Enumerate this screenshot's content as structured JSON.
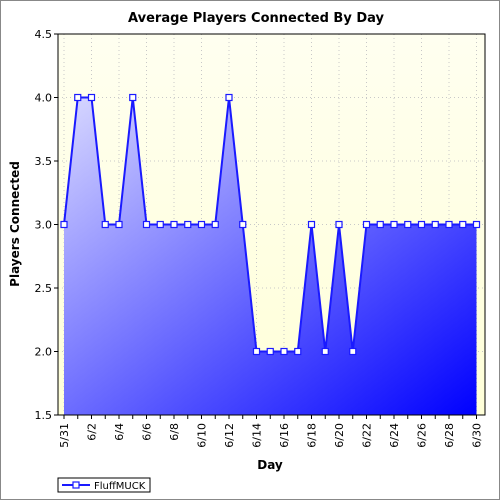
{
  "chart_data": {
    "type": "area",
    "title": "Average Players Connected By Day",
    "xlabel": "Day",
    "ylabel": "Players Connected",
    "ylim": [
      1.5,
      4.5
    ],
    "y_ticks": [
      "1.5",
      "2.0",
      "2.5",
      "3.0",
      "3.5",
      "4.0",
      "4.5"
    ],
    "x_tick_labels": [
      "5/31",
      "6/2",
      "6/4",
      "6/6",
      "6/8",
      "6/10",
      "6/12",
      "6/14",
      "6/16",
      "6/18",
      "6/20",
      "6/22",
      "6/24",
      "6/26",
      "6/28",
      "6/30"
    ],
    "x": [
      "5/31",
      "6/1",
      "6/2",
      "6/3",
      "6/4",
      "6/5",
      "6/6",
      "6/7",
      "6/8",
      "6/9",
      "6/10",
      "6/11",
      "6/12",
      "6/13",
      "6/14",
      "6/15",
      "6/16",
      "6/17",
      "6/18",
      "6/19",
      "6/20",
      "6/21",
      "6/22",
      "6/23",
      "6/24",
      "6/25",
      "6/26",
      "6/27",
      "6/28",
      "6/29",
      "6/30"
    ],
    "grid": true,
    "legend_position": "bottom-left",
    "series": [
      {
        "name": "FluffMUCK",
        "values": [
          3,
          4,
          4,
          3,
          3,
          4,
          3,
          3,
          3,
          3,
          3,
          3,
          4,
          3,
          2,
          2,
          2,
          2,
          3,
          2,
          3,
          2,
          3,
          3,
          3,
          3,
          3,
          3,
          3,
          3,
          3
        ],
        "color": "#0000ff"
      }
    ]
  },
  "colors": {
    "plot_background_top": "#fffff0",
    "plot_background_bottom": "#ffffd8",
    "area_top": "#d8d8ff",
    "area_bottom": "#0000ff",
    "line": "#1a1aff",
    "marker_fill": "#ffffff",
    "grid": "#c8c8c8"
  }
}
